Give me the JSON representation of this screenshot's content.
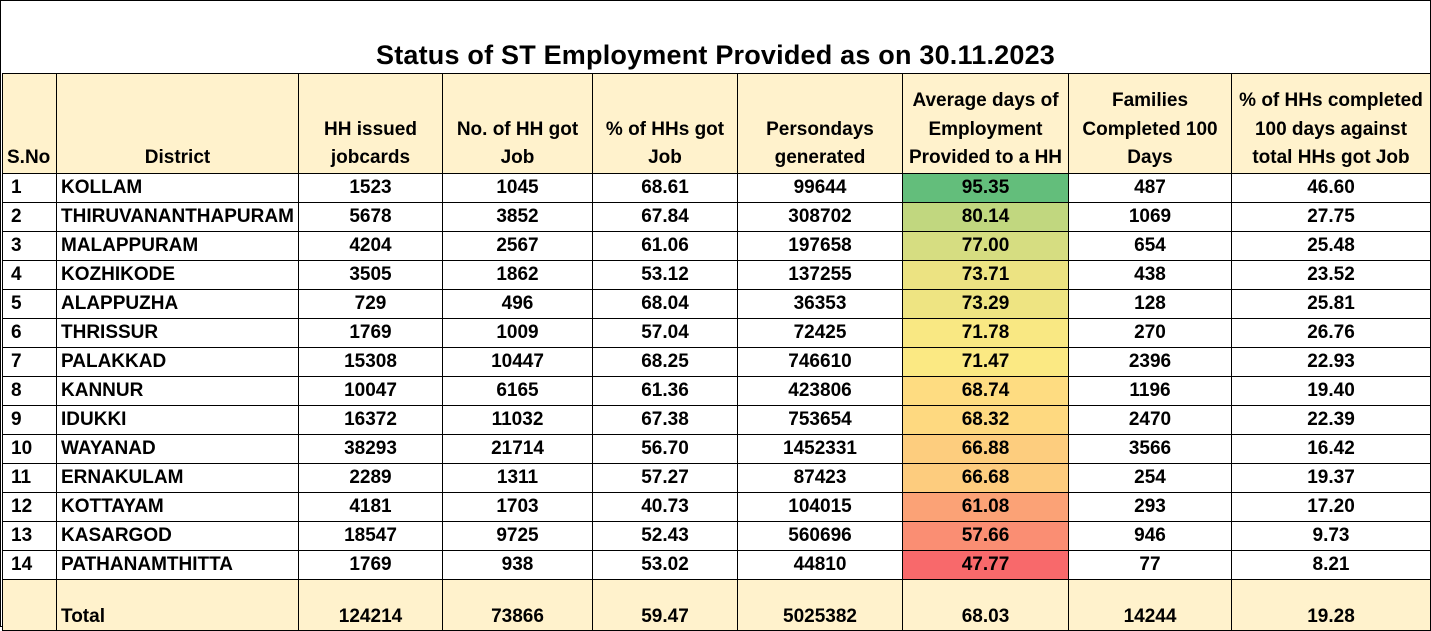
{
  "title": "Status of ST Employment Provided as on 30.11.2023",
  "headers": {
    "sno": "S.No",
    "district": "District",
    "hh_issued": "HH issued jobcards",
    "hh_got_job": "No. of HH got Job",
    "pct_got_job": "% of HHs got Job",
    "persondays": "Persondays generated",
    "avg_days": "Average days of Employment Provided to a HH",
    "families_100": "Families Completed 100 Days",
    "pct_100": "% of HHs completed 100 days against total HHs got Job"
  },
  "rows": [
    {
      "sno": "1",
      "district": "KOLLAM",
      "hh_issued": "1523",
      "hh_got_job": "1045",
      "pct_got_job": "68.61",
      "persondays": "99644",
      "avg_days": "95.35",
      "families_100": "487",
      "pct_100": "46.60",
      "avg_color": "#63be7b"
    },
    {
      "sno": "2",
      "district": "THIRUVANANTHAPURAM",
      "hh_issued": "5678",
      "hh_got_job": "3852",
      "pct_got_job": "67.84",
      "persondays": "308702",
      "avg_days": "80.14",
      "families_100": "1069",
      "pct_100": "27.75",
      "avg_color": "#c1d77f"
    },
    {
      "sno": "3",
      "district": "MALAPPURAM",
      "hh_issued": "4204",
      "hh_got_job": "2567",
      "pct_got_job": "61.06",
      "persondays": "197658",
      "avg_days": "77.00",
      "families_100": "654",
      "pct_100": "25.48",
      "avg_color": "#d6dd81"
    },
    {
      "sno": "4",
      "district": "KOZHIKODE",
      "hh_issued": "3505",
      "hh_got_job": "1862",
      "pct_got_job": "53.12",
      "persondays": "137255",
      "avg_days": "73.71",
      "families_100": "438",
      "pct_100": "23.52",
      "avg_color": "#ece382"
    },
    {
      "sno": "5",
      "district": "ALAPPUZHA",
      "hh_issued": "729",
      "hh_got_job": "496",
      "pct_got_job": "68.04",
      "persondays": "36353",
      "avg_days": "73.29",
      "families_100": "128",
      "pct_100": "25.81",
      "avg_color": "#eee482"
    },
    {
      "sno": "6",
      "district": "THRISSUR",
      "hh_issued": "1769",
      "hh_got_job": "1009",
      "pct_got_job": "57.04",
      "persondays": "72425",
      "avg_days": "71.78",
      "families_100": "270",
      "pct_100": "26.76",
      "avg_color": "#f9e883"
    },
    {
      "sno": "7",
      "district": "PALAKKAD",
      "hh_issued": "15308",
      "hh_got_job": "10447",
      "pct_got_job": "68.25",
      "persondays": "746610",
      "avg_days": "71.47",
      "families_100": "2396",
      "pct_100": "22.93",
      "avg_color": "#fbe983"
    },
    {
      "sno": "8",
      "district": "KANNUR",
      "hh_issued": "10047",
      "hh_got_job": "6165",
      "pct_got_job": "61.36",
      "persondays": "423806",
      "avg_days": "68.74",
      "families_100": "1196",
      "pct_100": "19.40",
      "avg_color": "#fedc81"
    },
    {
      "sno": "9",
      "district": "IDUKKI",
      "hh_issued": "16372",
      "hh_got_job": "11032",
      "pct_got_job": "67.38",
      "persondays": "753654",
      "avg_days": "68.32",
      "families_100": "2470",
      "pct_100": "22.39",
      "avg_color": "#fed980"
    },
    {
      "sno": "10",
      "district": "WAYANAD",
      "hh_issued": "38293",
      "hh_got_job": "21714",
      "pct_got_job": "56.70",
      "persondays": "1452331",
      "avg_days": "66.88",
      "families_100": "3566",
      "pct_100": "16.42",
      "avg_color": "#fdcd7e"
    },
    {
      "sno": "11",
      "district": "ERNAKULAM",
      "hh_issued": "2289",
      "hh_got_job": "1311",
      "pct_got_job": "57.27",
      "persondays": "87423",
      "avg_days": "66.68",
      "families_100": "254",
      "pct_100": "19.37",
      "avg_color": "#fdcc7e"
    },
    {
      "sno": "12",
      "district": "KOTTAYAM",
      "hh_issued": "4181",
      "hh_got_job": "1703",
      "pct_got_job": "40.73",
      "persondays": "104015",
      "avg_days": "61.08",
      "families_100": "293",
      "pct_100": "17.20",
      "avg_color": "#fba276"
    },
    {
      "sno": "13",
      "district": "KASARGOD",
      "hh_issued": "18547",
      "hh_got_job": "9725",
      "pct_got_job": "52.43",
      "persondays": "560696",
      "avg_days": "57.66",
      "families_100": "946",
      "pct_100": "9.73",
      "avg_color": "#fa8e73"
    },
    {
      "sno": "14",
      "district": "PATHANAMTHITTA",
      "hh_issued": "1769",
      "hh_got_job": "938",
      "pct_got_job": "53.02",
      "persondays": "44810",
      "avg_days": "47.77",
      "families_100": "77",
      "pct_100": "8.21",
      "avg_color": "#f8696b"
    }
  ],
  "total": {
    "label": "Total",
    "hh_issued": "124214",
    "hh_got_job": "73866",
    "pct_got_job": "59.47",
    "persondays": "5025382",
    "avg_days": "68.03",
    "families_100": "14244",
    "pct_100": "19.28"
  },
  "colors": {
    "header_bg": "#fff2cc",
    "total_bg": "#fff2cc"
  }
}
